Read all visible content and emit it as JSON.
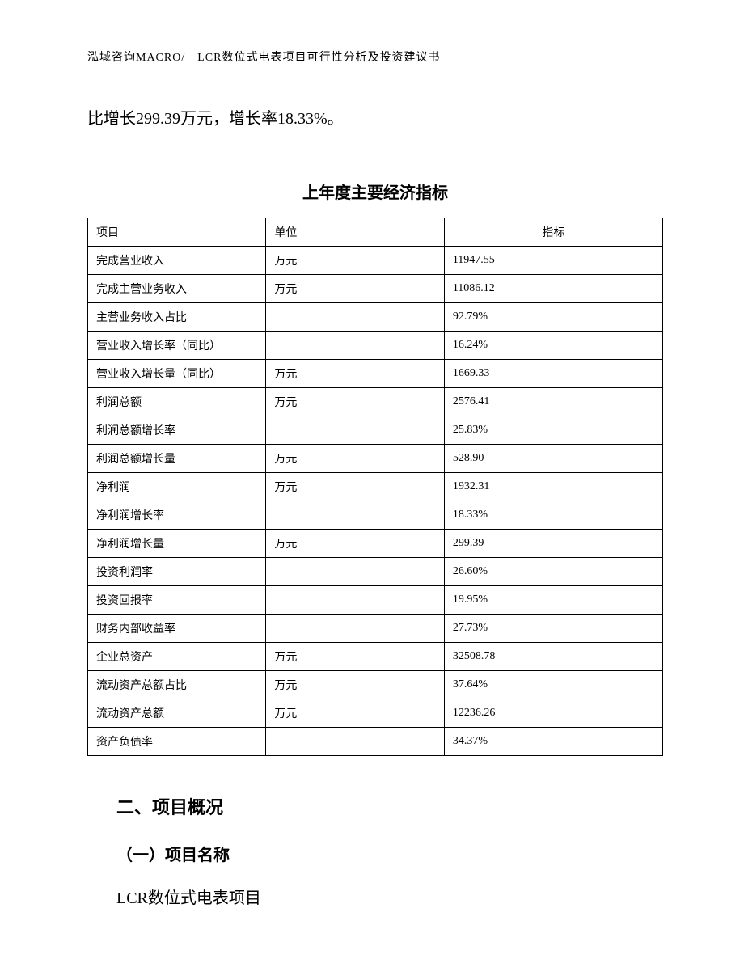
{
  "header": "泓域咨询MACRO/　LCR数位式电表项目可行性分析及投资建议书",
  "intro": "比增长299.39万元，增长率18.33%。",
  "table": {
    "title": "上年度主要经济指标",
    "columns": [
      "项目",
      "单位",
      "指标"
    ],
    "rows": [
      [
        "完成营业收入",
        "万元",
        "11947.55"
      ],
      [
        "完成主营业务收入",
        "万元",
        "11086.12"
      ],
      [
        "主营业务收入占比",
        "",
        "92.79%"
      ],
      [
        "营业收入增长率（同比）",
        "",
        "16.24%"
      ],
      [
        "营业收入增长量（同比）",
        "万元",
        "1669.33"
      ],
      [
        "利润总额",
        "万元",
        "2576.41"
      ],
      [
        "利润总额增长率",
        "",
        "25.83%"
      ],
      [
        "利润总额增长量",
        "万元",
        "528.90"
      ],
      [
        "净利润",
        "万元",
        "1932.31"
      ],
      [
        "净利润增长率",
        "",
        "18.33%"
      ],
      [
        "净利润增长量",
        "万元",
        "299.39"
      ],
      [
        "投资利润率",
        "",
        "26.60%"
      ],
      [
        "投资回报率",
        "",
        "19.95%"
      ],
      [
        "财务内部收益率",
        "",
        "27.73%"
      ],
      [
        "企业总资产",
        "万元",
        "32508.78"
      ],
      [
        "流动资产总额占比",
        "万元",
        "37.64%"
      ],
      [
        "流动资产总额",
        "万元",
        "12236.26"
      ],
      [
        "资产负债率",
        "",
        "34.37%"
      ]
    ]
  },
  "section": {
    "heading": "二、项目概况",
    "sub": "（一）项目名称",
    "body": "LCR数位式电表项目"
  },
  "style": {
    "page_bg": "#ffffff",
    "text_color": "#000000",
    "border_color": "#000000",
    "header_fontsize": 14,
    "body_fontsize": 20,
    "table_fontsize": 14,
    "heading_fontsize": 22
  }
}
